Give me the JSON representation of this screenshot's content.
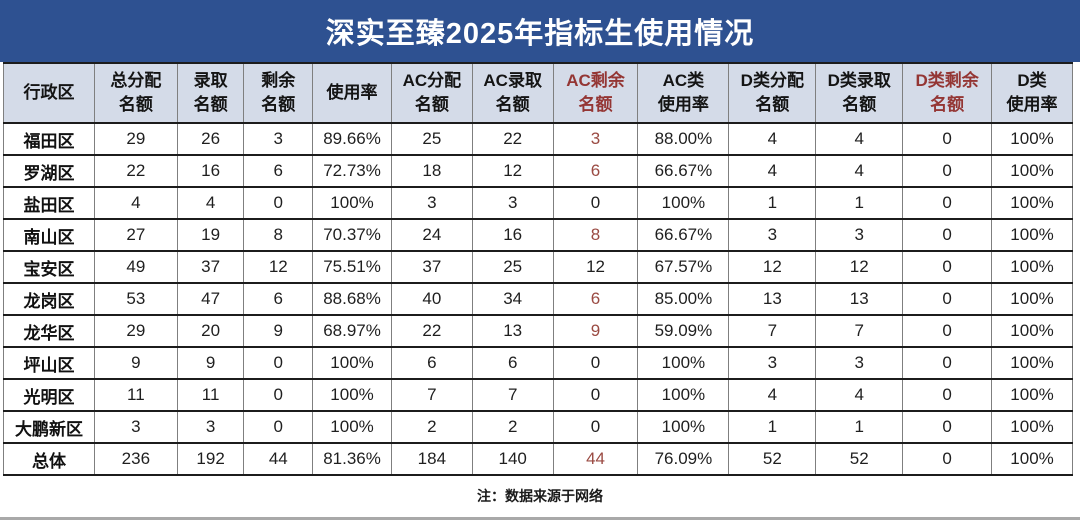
{
  "title": "深实至臻2025年指标生使用情况",
  "note": "注：数据来源于网络",
  "colors": {
    "title_bar_bg": "#2E5191",
    "title_text": "#ffffff",
    "header_bg": "#d4dbe8",
    "header_red_text": "#943634",
    "value_red_text": "#9a4a42",
    "grid_line": "#1c1c1c"
  },
  "table": {
    "columns": [
      {
        "line1": "行政区",
        "line2": "",
        "red": false
      },
      {
        "line1": "总分配",
        "line2": "名额",
        "red": false
      },
      {
        "line1": "录取",
        "line2": "名额",
        "red": false
      },
      {
        "line1": "剩余",
        "line2": "名额",
        "red": false
      },
      {
        "line1": "使用率",
        "line2": "",
        "red": false
      },
      {
        "line1": "AC分配",
        "line2": "名额",
        "red": false
      },
      {
        "line1": "AC录取",
        "line2": "名额",
        "red": false
      },
      {
        "line1": "AC剩余",
        "line2": "名额",
        "red": true
      },
      {
        "line1": "AC类",
        "line2": "使用率",
        "red": false
      },
      {
        "line1": "D类分配",
        "line2": "名额",
        "red": false
      },
      {
        "line1": "D类录取",
        "line2": "名额",
        "red": false
      },
      {
        "line1": "D类剩余",
        "line2": "名额",
        "red": true
      },
      {
        "line1": "D类",
        "line2": "使用率",
        "red": false
      }
    ],
    "rows": [
      {
        "district": "福田区",
        "values": [
          "29",
          "26",
          "3",
          "89.66%",
          "25",
          "22",
          "3",
          "88.00%",
          "4",
          "4",
          "0",
          "100%"
        ],
        "red_indexes": [
          6
        ]
      },
      {
        "district": "罗湖区",
        "values": [
          "22",
          "16",
          "6",
          "72.73%",
          "18",
          "12",
          "6",
          "66.67%",
          "4",
          "4",
          "0",
          "100%"
        ],
        "red_indexes": [
          6
        ]
      },
      {
        "district": "盐田区",
        "values": [
          "4",
          "4",
          "0",
          "100%",
          "3",
          "3",
          "0",
          "100%",
          "1",
          "1",
          "0",
          "100%"
        ],
        "red_indexes": []
      },
      {
        "district": "南山区",
        "values": [
          "27",
          "19",
          "8",
          "70.37%",
          "24",
          "16",
          "8",
          "66.67%",
          "3",
          "3",
          "0",
          "100%"
        ],
        "red_indexes": [
          6
        ]
      },
      {
        "district": "宝安区",
        "values": [
          "49",
          "37",
          "12",
          "75.51%",
          "37",
          "25",
          "12",
          "67.57%",
          "12",
          "12",
          "0",
          "100%"
        ],
        "red_indexes": []
      },
      {
        "district": "龙岗区",
        "values": [
          "53",
          "47",
          "6",
          "88.68%",
          "40",
          "34",
          "6",
          "85.00%",
          "13",
          "13",
          "0",
          "100%"
        ],
        "red_indexes": [
          6
        ]
      },
      {
        "district": "龙华区",
        "values": [
          "29",
          "20",
          "9",
          "68.97%",
          "22",
          "13",
          "9",
          "59.09%",
          "7",
          "7",
          "0",
          "100%"
        ],
        "red_indexes": [
          6
        ]
      },
      {
        "district": "坪山区",
        "values": [
          "9",
          "9",
          "0",
          "100%",
          "6",
          "6",
          "0",
          "100%",
          "3",
          "3",
          "0",
          "100%"
        ],
        "red_indexes": []
      },
      {
        "district": "光明区",
        "values": [
          "11",
          "11",
          "0",
          "100%",
          "7",
          "7",
          "0",
          "100%",
          "4",
          "4",
          "0",
          "100%"
        ],
        "red_indexes": []
      },
      {
        "district": "大鹏新区",
        "values": [
          "3",
          "3",
          "0",
          "100%",
          "2",
          "2",
          "0",
          "100%",
          "1",
          "1",
          "0",
          "100%"
        ],
        "red_indexes": []
      },
      {
        "district": "总体",
        "values": [
          "236",
          "192",
          "44",
          "81.36%",
          "184",
          "140",
          "44",
          "76.09%",
          "52",
          "52",
          "0",
          "100%"
        ],
        "red_indexes": [
          6
        ]
      }
    ]
  }
}
